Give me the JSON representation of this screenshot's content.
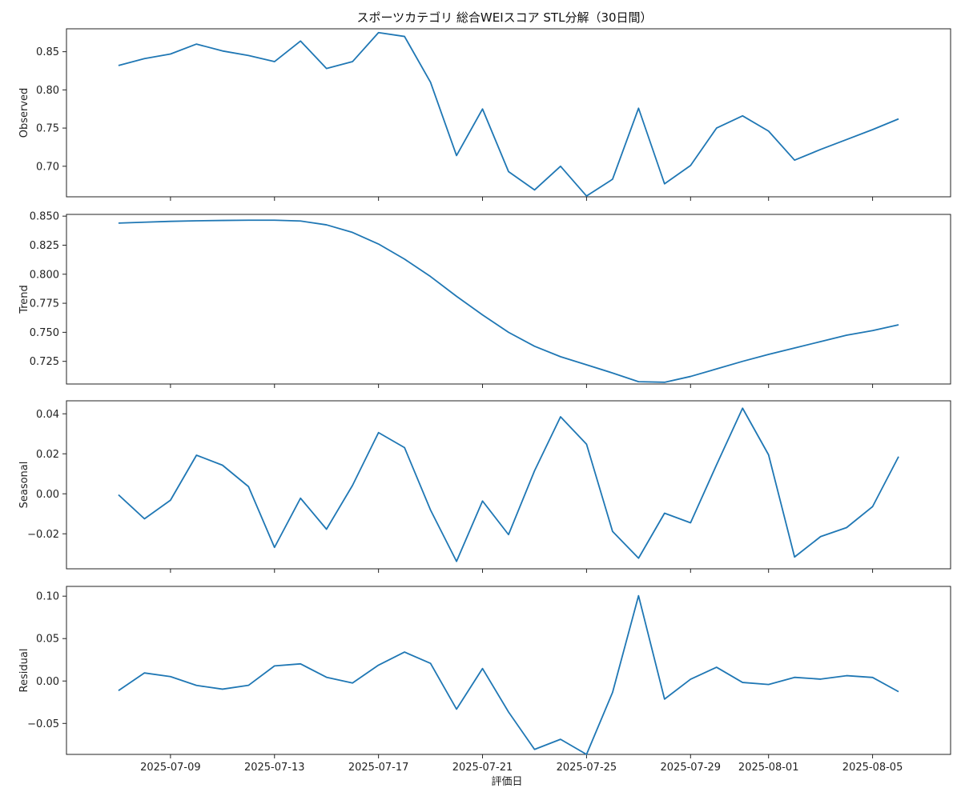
{
  "chart_data": {
    "type": "line",
    "title": "スポーツカテゴリ 総合WEIスコア STL分解（30日間）",
    "xlabel": "評価日",
    "x_dates": [
      "2025-07-07",
      "2025-07-08",
      "2025-07-09",
      "2025-07-10",
      "2025-07-11",
      "2025-07-12",
      "2025-07-13",
      "2025-07-14",
      "2025-07-15",
      "2025-07-16",
      "2025-07-17",
      "2025-07-18",
      "2025-07-19",
      "2025-07-20",
      "2025-07-21",
      "2025-07-22",
      "2025-07-23",
      "2025-07-24",
      "2025-07-25",
      "2025-07-26",
      "2025-07-27",
      "2025-07-28",
      "2025-07-29",
      "2025-07-30",
      "2025-07-31",
      "2025-08-01",
      "2025-08-02",
      "2025-08-03",
      "2025-08-04",
      "2025-08-05",
      "2025-08-06"
    ],
    "x_ticks": [
      "2025-07-09",
      "2025-07-13",
      "2025-07-17",
      "2025-07-21",
      "2025-07-25",
      "2025-07-29",
      "2025-08-01",
      "2025-08-05"
    ],
    "xlim": [
      "2025-07-05",
      "2025-08-08"
    ],
    "panels": [
      {
        "ylabel": "Observed",
        "ylim": [
          0.66,
          0.88
        ],
        "yticks": [
          0.7,
          0.75,
          0.8,
          0.85
        ],
        "ytick_labels": [
          "0.70",
          "0.75",
          "0.80",
          "0.85"
        ],
        "values": [
          0.832,
          0.841,
          0.847,
          0.86,
          0.851,
          0.845,
          0.837,
          0.864,
          0.828,
          0.837,
          0.875,
          0.87,
          0.81,
          0.714,
          0.775,
          0.693,
          0.669,
          0.7,
          0.661,
          0.683,
          0.776,
          0.677,
          0.701,
          0.75,
          0.766,
          0.746,
          0.708,
          0.722,
          0.735,
          0.748,
          0.762
        ]
      },
      {
        "ylabel": "Trend",
        "ylim": [
          0.7055,
          0.8515
        ],
        "yticks": [
          0.725,
          0.75,
          0.775,
          0.8,
          0.825,
          0.85
        ],
        "ytick_labels": [
          "0.725",
          "0.750",
          "0.775",
          "0.800",
          "0.825",
          "0.850"
        ],
        "values": [
          0.844,
          0.8448,
          0.8455,
          0.846,
          0.8463,
          0.8465,
          0.8465,
          0.8458,
          0.8425,
          0.836,
          0.826,
          0.813,
          0.798,
          0.781,
          0.765,
          0.75,
          0.738,
          0.729,
          0.722,
          0.715,
          0.7075,
          0.707,
          0.712,
          0.7185,
          0.725,
          0.731,
          0.7365,
          0.742,
          0.7475,
          0.7515,
          0.7565
        ]
      },
      {
        "ylabel": "Seasonal",
        "ylim": [
          -0.0375,
          0.0465
        ],
        "yticks": [
          -0.02,
          0.0,
          0.02,
          0.04
        ],
        "ytick_labels": [
          "−0.02",
          "0.00",
          "0.02",
          "0.04"
        ],
        "values": [
          -0.0005,
          -0.0125,
          -0.0032,
          0.0193,
          0.0143,
          0.0036,
          -0.0268,
          -0.0022,
          -0.0177,
          0.0042,
          0.0306,
          0.0231,
          -0.0081,
          -0.0338,
          -0.0036,
          -0.0204,
          0.0115,
          0.0385,
          0.0248,
          -0.0188,
          -0.0322,
          -0.0097,
          -0.0145,
          0.0145,
          0.0428,
          0.0195,
          -0.0316,
          -0.0214,
          -0.0169,
          -0.0064,
          0.0186
        ]
      },
      {
        "ylabel": "Residual",
        "ylim": [
          -0.0865,
          0.1115
        ],
        "yticks": [
          -0.05,
          0.0,
          0.05,
          0.1
        ],
        "ytick_labels": [
          "−0.05",
          "0.00",
          "0.05",
          "0.10"
        ],
        "values": [
          -0.0113,
          0.0095,
          0.0052,
          -0.0052,
          -0.0096,
          -0.0051,
          0.0178,
          0.0202,
          0.0044,
          -0.0023,
          0.0187,
          0.0341,
          0.0208,
          -0.0332,
          0.0147,
          -0.0365,
          -0.0806,
          -0.0687,
          -0.0865,
          -0.0135,
          0.1005,
          -0.0213,
          0.0021,
          0.0162,
          -0.0017,
          -0.0041,
          0.0043,
          0.0022,
          0.0063,
          0.0042,
          -0.0126
        ]
      }
    ]
  }
}
